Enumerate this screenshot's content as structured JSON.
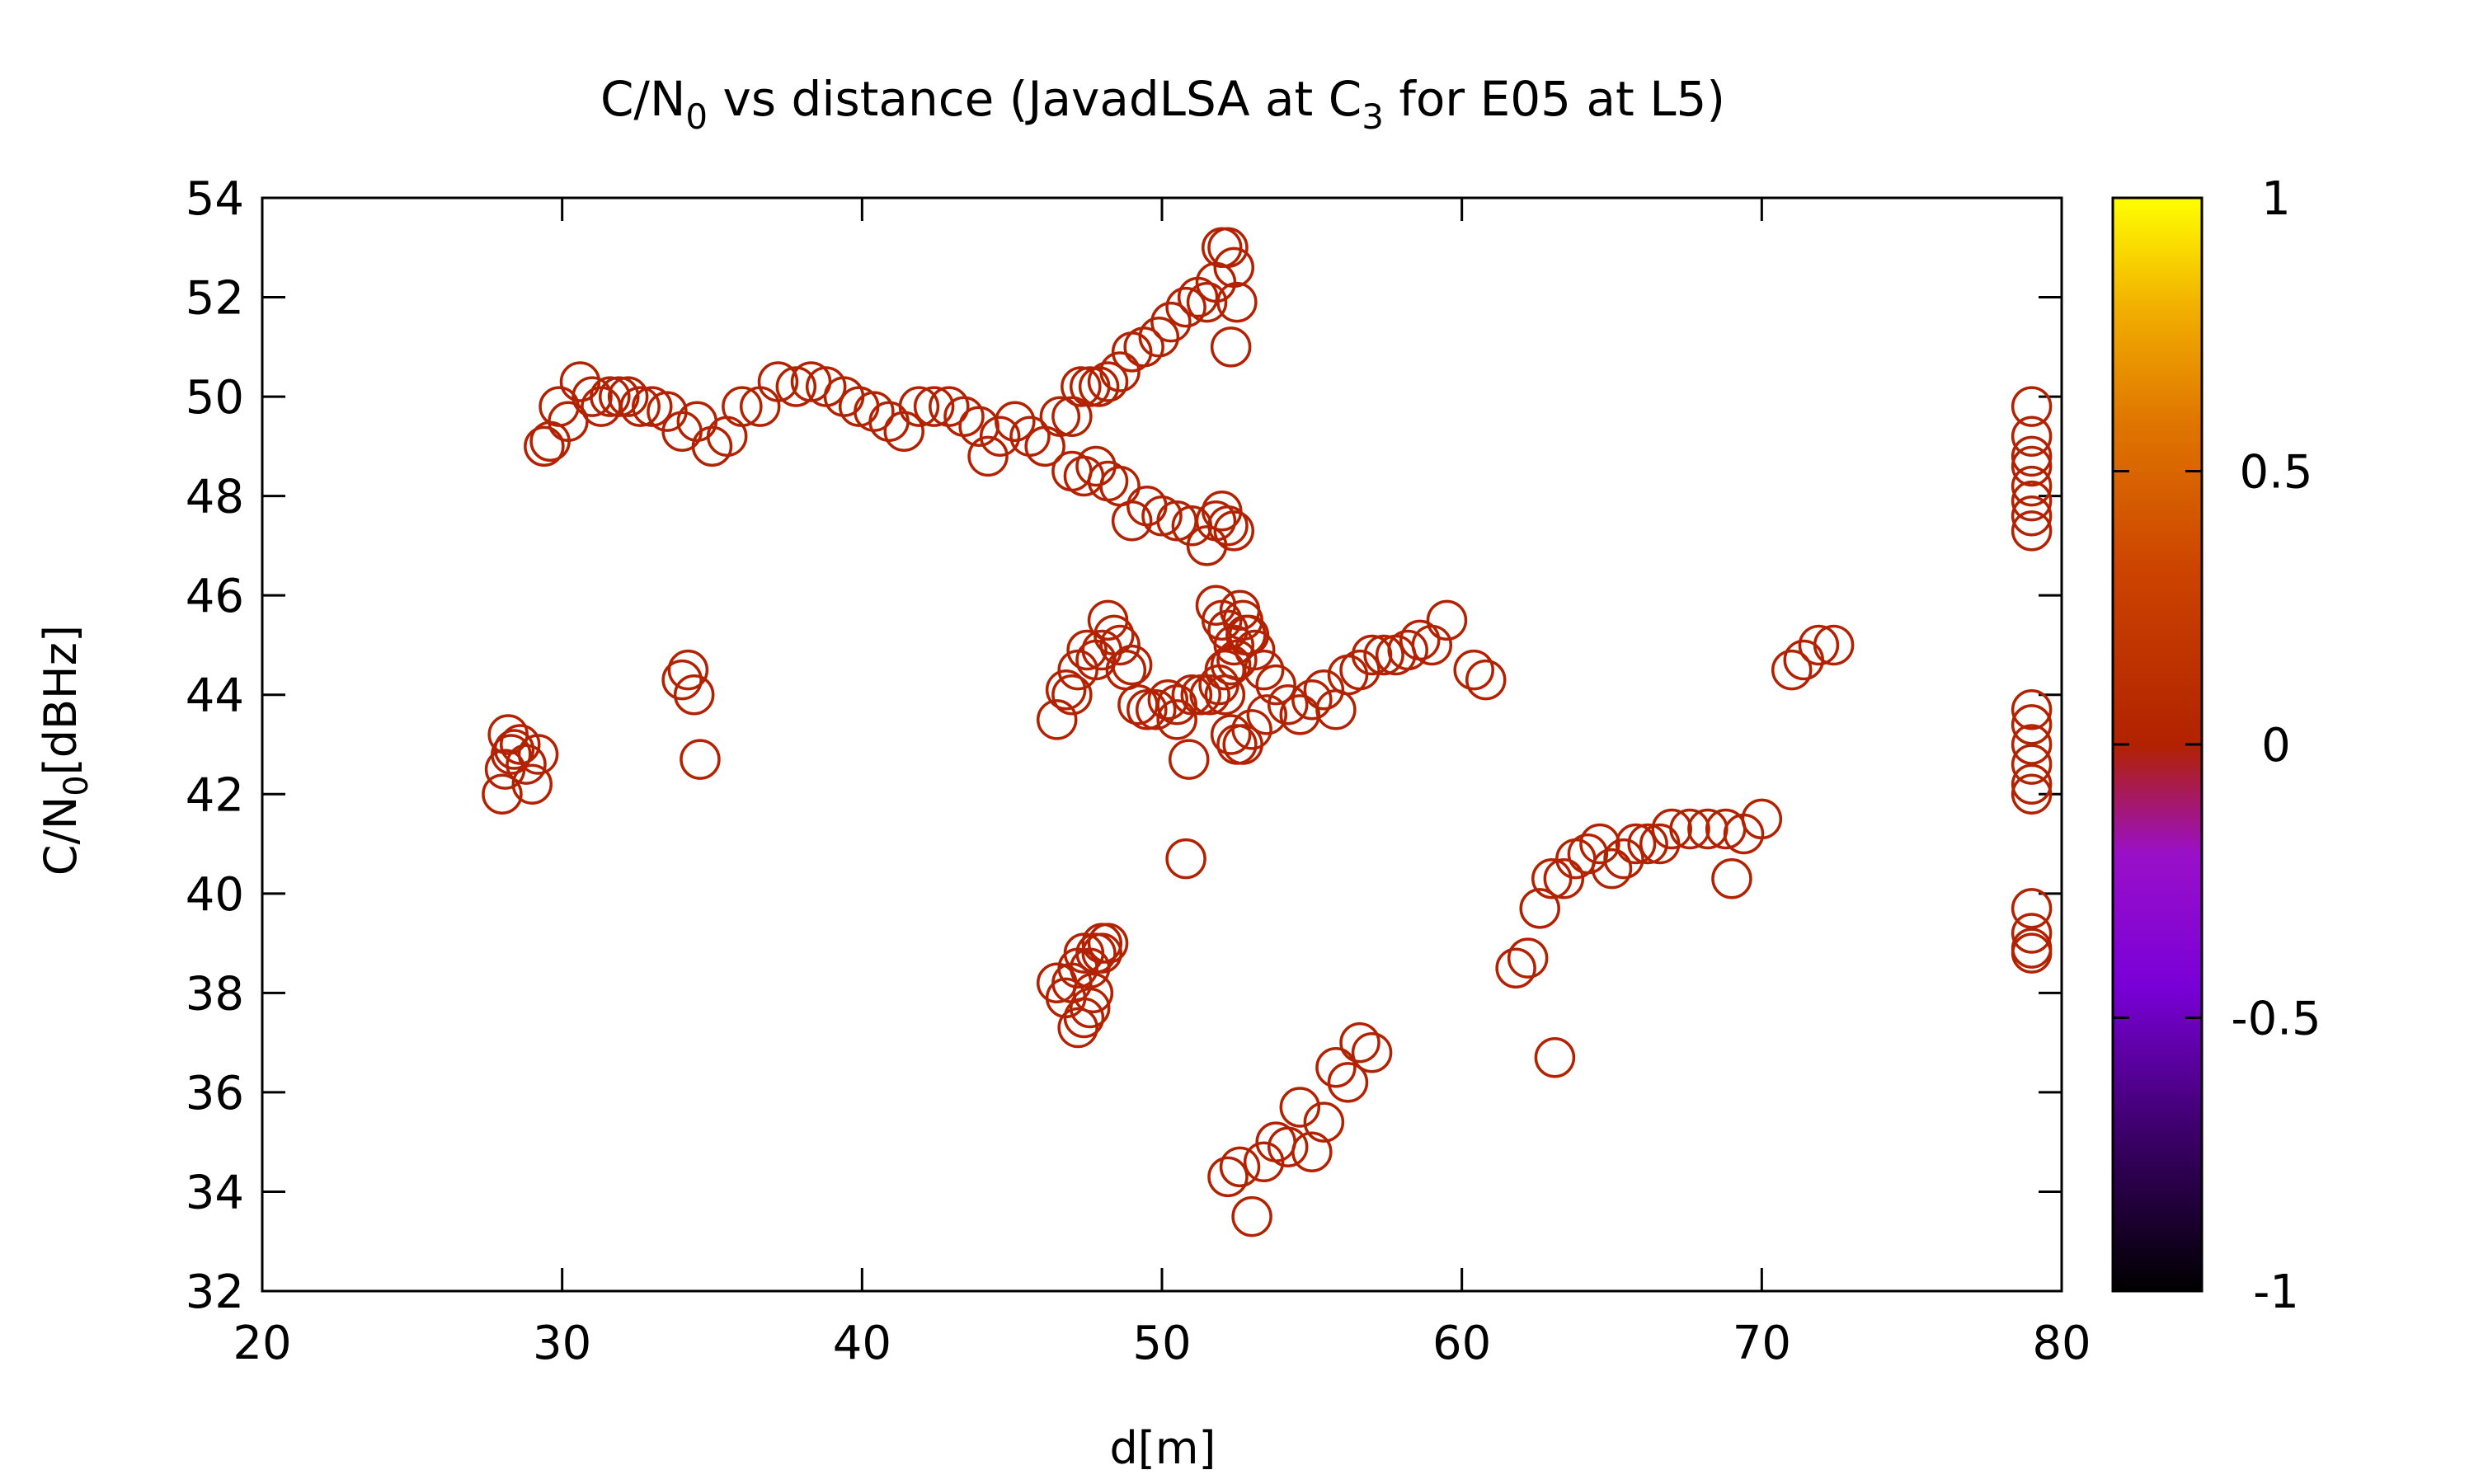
{
  "chart_data": {
    "type": "scatter",
    "title": {
      "main": "C/N",
      "sub1": "0",
      "mid": " vs distance (JavadLSA at C",
      "sub2": "3",
      "tail": " for E05 at L5)"
    },
    "xlabel": "d[m]",
    "ylabel": {
      "main": "C/N",
      "sub": "0",
      "tail": "[dBHz]"
    },
    "xlim": [
      20,
      80
    ],
    "ylim": [
      32,
      54
    ],
    "xticks": [
      "20",
      "30",
      "40",
      "50",
      "60",
      "70",
      "80"
    ],
    "yticks": [
      "32",
      "34",
      "36",
      "38",
      "40",
      "42",
      "44",
      "46",
      "48",
      "50",
      "52",
      "54"
    ],
    "colorbar": {
      "range": [
        -1,
        1
      ],
      "ticks": [
        "-1",
        "-0.5",
        "0",
        "0.5",
        "1"
      ],
      "palette": [
        "#000000",
        "#4b0083",
        "#8b00ff",
        "#c71585",
        "#b22200",
        "#d2691e",
        "#ffa500",
        "#ffff00"
      ]
    },
    "marker": "open-circle",
    "color": "#b22200",
    "grid": false,
    "x": [
      28.0,
      28.1,
      28.2,
      28.3,
      28.4,
      28.6,
      28.8,
      29.0,
      29.2,
      29.4,
      29.6,
      29.9,
      30.2,
      30.6,
      31.0,
      31.3,
      31.6,
      31.9,
      32.2,
      32.6,
      33.0,
      33.5,
      34.0,
      34.5,
      35.0,
      35.5,
      36.0,
      36.6,
      37.2,
      37.8,
      38.3,
      38.8,
      39.4,
      39.9,
      40.4,
      40.9,
      41.4,
      41.9,
      42.4,
      42.9,
      43.4,
      43.9,
      44.2,
      44.6,
      45.1,
      45.6,
      46.1,
      46.6,
      47.0,
      47.3,
      47.6,
      47.9,
      48.2,
      48.6,
      49.0,
      49.4,
      49.9,
      50.3,
      50.8,
      51.2,
      51.5,
      51.8,
      52.0,
      52.2,
      52.4,
      52.5,
      52.3,
      47.0,
      47.4,
      47.8,
      48.2,
      48.6,
      49.0,
      49.5,
      50.0,
      50.5,
      51.0,
      51.5,
      51.8,
      52.0,
      52.2,
      52.4,
      46.8,
      47.2,
      47.5,
      47.8,
      48.0,
      48.2,
      48.4,
      48.6,
      48.8,
      49.0,
      49.2,
      49.5,
      49.8,
      50.2,
      50.5,
      51.0,
      51.3,
      51.6,
      51.9,
      52.1,
      52.3,
      52.5,
      52.7,
      52.9,
      53.1,
      53.4,
      53.8,
      54.2,
      54.6,
      55.0,
      55.4,
      55.8,
      56.2,
      56.6,
      57.0,
      57.4,
      57.8,
      58.2,
      58.6,
      59.0,
      59.5,
      60.4,
      60.8,
      46.5,
      47.0,
      50.5,
      51.8,
      52.0,
      52.2,
      52.4,
      52.6,
      52.8,
      52.1,
      52.3,
      52.5,
      52.7,
      53.0,
      53.5,
      50.9,
      50.8,
      34.0,
      34.2,
      34.4,
      34.6,
      46.5,
      46.8,
      47.0,
      47.2,
      47.4,
      47.6,
      47.8,
      48.0,
      48.2,
      47.2,
      47.4,
      47.6,
      48.0,
      47.7,
      52.2,
      52.6,
      53.0,
      53.4,
      53.8,
      54.2,
      54.6,
      55.0,
      55.4,
      55.8,
      56.2,
      56.6,
      57.0,
      61.8,
      62.2,
      62.6,
      63.0,
      63.4,
      63.8,
      64.2,
      64.6,
      65.0,
      65.4,
      65.8,
      66.2,
      66.6,
      67.0,
      67.6,
      68.2,
      68.8,
      69.4,
      70.0,
      63.1,
      69.0,
      71.0,
      71.4,
      71.9,
      72.4,
      79.0,
      79.0,
      79.0,
      79.0,
      79.0,
      79.0,
      79.0,
      79.0,
      79.0,
      79.0,
      79.0,
      79.0,
      79.0,
      79.0,
      79.0,
      79.0,
      79.0,
      79.0
    ],
    "y": [
      42.0,
      42.5,
      43.2,
      42.8,
      42.9,
      43.0,
      42.6,
      42.2,
      42.8,
      49.0,
      49.1,
      49.8,
      49.5,
      50.3,
      50.0,
      49.8,
      50.0,
      50.0,
      50.0,
      49.8,
      49.8,
      49.7,
      49.3,
      49.5,
      49.0,
      49.2,
      49.8,
      49.8,
      50.3,
      50.2,
      50.3,
      50.2,
      50.0,
      49.8,
      49.7,
      49.5,
      49.3,
      49.8,
      49.8,
      49.8,
      49.6,
      49.4,
      48.8,
      49.2,
      49.5,
      49.2,
      49.0,
      49.6,
      49.6,
      50.2,
      50.2,
      50.2,
      50.3,
      50.5,
      50.9,
      51.0,
      51.2,
      51.5,
      51.8,
      52.0,
      51.9,
      52.3,
      53.0,
      53.0,
      52.6,
      51.9,
      51.0,
      48.5,
      48.4,
      48.6,
      48.3,
      48.2,
      47.5,
      47.8,
      47.6,
      47.5,
      47.4,
      47.0,
      47.5,
      47.7,
      47.4,
      47.3,
      44.1,
      44.5,
      44.9,
      44.7,
      44.9,
      45.5,
      45.2,
      45.0,
      44.5,
      44.6,
      43.8,
      43.7,
      43.7,
      43.9,
      43.8,
      44.0,
      44.0,
      44.0,
      44.2,
      44.5,
      44.6,
      44.7,
      45.5,
      45.2,
      44.9,
      44.5,
      44.2,
      43.8,
      43.6,
      43.9,
      44.1,
      43.7,
      44.4,
      44.5,
      44.8,
      44.8,
      44.8,
      44.9,
      45.1,
      45.0,
      45.5,
      44.5,
      44.3,
      43.5,
      44.0,
      43.5,
      45.8,
      45.5,
      45.3,
      45.0,
      45.7,
      45.2,
      44.0,
      43.2,
      43.0,
      43.0,
      43.3,
      43.6,
      42.7,
      40.7,
      44.3,
      44.5,
      44.0,
      42.7,
      38.2,
      37.9,
      38.2,
      38.5,
      38.8,
      38.5,
      38.8,
      39.0,
      39.0,
      37.3,
      37.5,
      37.7,
      38.8,
      38.0,
      34.3,
      34.5,
      33.5,
      34.6,
      35.0,
      34.9,
      35.7,
      34.8,
      35.4,
      36.5,
      36.2,
      37.0,
      36.8,
      38.5,
      38.7,
      39.7,
      40.3,
      40.3,
      40.7,
      40.8,
      41.0,
      40.5,
      40.7,
      41.0,
      41.0,
      41.0,
      41.3,
      41.3,
      41.3,
      41.3,
      41.2,
      41.5,
      36.7,
      40.3,
      44.5,
      44.7,
      45.0,
      45.0,
      49.8,
      49.2,
      48.8,
      48.6,
      48.2,
      47.9,
      47.6,
      47.3,
      43.7,
      43.4,
      43.0,
      42.6,
      42.2,
      42.0,
      39.7,
      39.2,
      38.9,
      38.8
    ]
  }
}
